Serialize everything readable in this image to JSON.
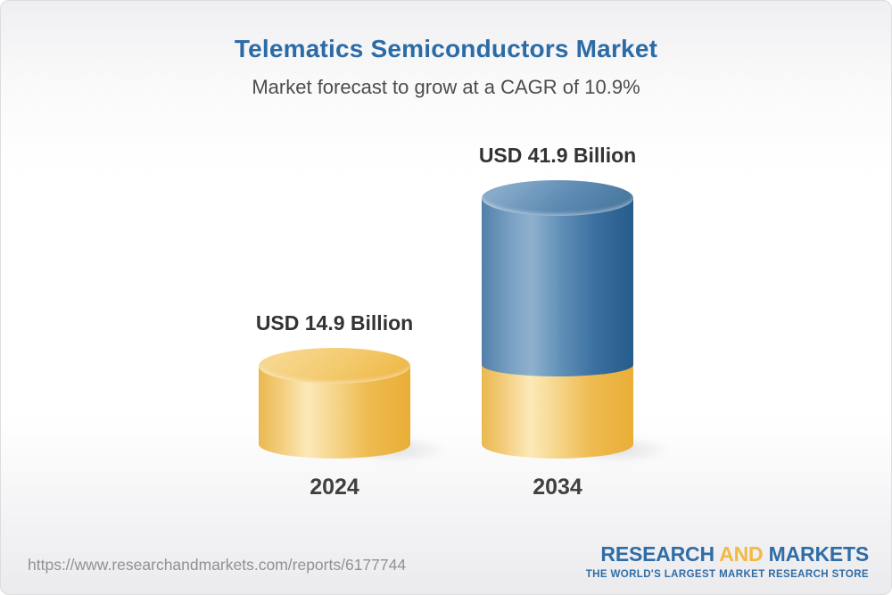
{
  "header": {
    "title": "Telematics Semiconductors Market",
    "subtitle": "Market forecast to grow at a CAGR of 10.9%"
  },
  "chart_data": {
    "type": "bar",
    "variant": "3d-cylinder-columns",
    "categories": [
      "2024",
      "2034"
    ],
    "values": [
      14.9,
      41.9
    ],
    "unit": "USD Billion",
    "bar_labels": [
      "USD 14.9 Billion",
      "USD 41.9 Billion"
    ],
    "title": "Telematics Semiconductors Market",
    "cagr_percent": 10.9,
    "xlabel": "",
    "ylabel": "",
    "axes_shown": false,
    "grid": false,
    "legend_position": "none",
    "notes": "2034 column repeats the 2024 value as a yellow base segment with a blue growth segment stacked above it",
    "colors": {
      "base_segment_yellow": "#f0c161",
      "growth_segment_blue": "#44749f"
    }
  },
  "footer": {
    "url": "https://www.researchandmarkets.com/reports/6177744",
    "logo": {
      "part1": "RESEARCH",
      "part2": "AND",
      "part3": "MARKETS",
      "tagline": "THE WORLD'S LARGEST MARKET RESEARCH STORE"
    }
  },
  "colors": {
    "title_blue": "#2b6ba6",
    "subtitle_gray": "#4c4c4c",
    "value_label_gray": "#333333",
    "url_gray": "#8f9194",
    "logo_blue": "#2f6da6",
    "logo_gold": "#f3b942"
  }
}
